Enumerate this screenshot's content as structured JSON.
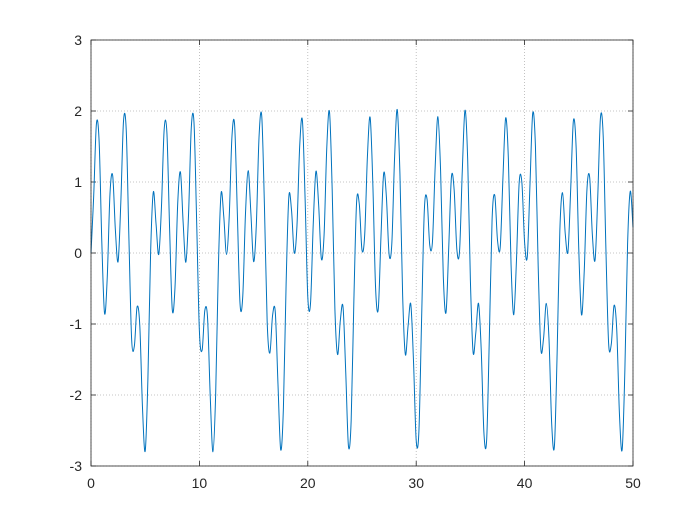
{
  "chart_data": {
    "type": "line",
    "color": "#0072bd",
    "grid": true,
    "xlim": [
      0,
      50
    ],
    "ylim": [
      -3,
      3
    ],
    "xticks": [
      0,
      10,
      20,
      30,
      40,
      50
    ],
    "yticks": [
      -3,
      -2,
      -1,
      0,
      1,
      2,
      3
    ],
    "x": [
      0,
      0.25,
      0.5,
      0.75,
      1,
      1.25,
      1.5,
      1.75,
      2,
      2.25,
      2.5,
      2.75,
      3,
      3.25,
      3.5,
      3.75,
      4,
      4.25,
      4.5,
      4.75,
      5,
      5.25,
      5.5,
      5.75,
      6,
      6.25,
      6.5,
      6.75,
      7,
      7.25,
      7.5,
      7.75,
      8,
      8.25,
      8.5,
      8.75,
      9,
      9.25,
      9.5,
      9.75,
      10,
      10.25,
      10.5,
      10.75,
      11,
      11.25,
      11.5,
      11.75,
      12,
      12.25,
      12.5,
      12.75,
      13,
      13.25,
      13.5,
      13.75,
      14,
      14.25,
      14.5,
      14.75,
      15,
      15.25,
      15.5,
      15.75,
      16,
      16.25,
      16.5,
      16.75,
      17,
      17.25,
      17.5,
      17.75,
      18,
      18.25,
      18.5,
      18.75,
      19,
      19.25,
      19.5,
      19.75,
      20,
      20.25,
      20.5,
      20.75,
      21,
      21.25,
      21.5,
      21.75,
      22,
      22.25,
      22.5,
      22.75,
      23,
      23.25,
      23.5,
      23.75,
      24,
      24.25,
      24.5,
      24.75,
      25,
      25.25,
      25.5,
      25.75,
      26,
      26.25,
      26.5,
      26.75,
      27,
      27.25,
      27.5,
      27.75,
      28,
      28.25,
      28.5,
      28.75,
      29,
      29.25,
      29.5,
      29.75,
      30,
      30.25,
      30.5,
      30.75,
      31,
      31.25,
      31.5,
      31.75,
      32,
      32.25,
      32.5,
      32.75,
      33,
      33.25,
      33.5,
      33.75,
      34,
      34.25,
      34.5,
      34.75,
      35,
      35.25,
      35.5,
      35.75,
      36,
      36.25,
      36.5,
      36.75,
      37,
      37.25,
      37.5,
      37.75,
      38,
      38.25,
      38.5,
      38.75,
      39,
      39.25,
      39.5,
      39.75,
      40,
      40.25,
      40.5,
      40.75,
      41,
      41.25,
      41.5,
      41.75,
      42,
      42.25,
      42.5,
      42.75,
      43,
      43.25,
      43.5,
      43.75,
      44,
      44.25,
      44.5,
      44.75,
      45,
      45.25,
      45.5,
      45.75,
      46,
      46.25,
      46.5,
      46.75,
      47,
      47.25,
      47.5,
      47.75,
      48,
      48.25,
      48.5,
      48.75,
      49,
      49.25,
      49.5,
      49.75,
      50
    ],
    "values": [
      0,
      0.81,
      1.82,
      1.57,
      0.14,
      -0.85,
      -0.34,
      0.83,
      1.09,
      0.32,
      -0.12,
      0.71,
      1.86,
      1.73,
      0.19,
      -1.22,
      -1.31,
      -0.76,
      -1.02,
      -2.18,
      -2.79,
      -1.77,
      0.01,
      0.86,
      0.41,
      -0.02,
      0.65,
      1.74,
      1.7,
      0.35,
      -0.8,
      -0.48,
      0.7,
      1.14,
      0.43,
      -0.13,
      0.55,
      1.76,
      1.84,
      0.42,
      -1.1,
      -1.37,
      -0.81,
      -0.91,
      -2.02,
      -2.8,
      -1.99,
      -0.2,
      0.84,
      0.51,
      -0.02,
      0.51,
      1.63,
      1.8,
      0.56,
      -0.72,
      -0.61,
      0.55,
      1.16,
      0.56,
      -0.12,
      0.39,
      1.63,
      1.93,
      0.66,
      -0.96,
      -1.41,
      -0.88,
      -0.83,
      -1.85,
      -2.77,
      -2.18,
      -0.43,
      0.79,
      0.6,
      0.0,
      0.38,
      1.5,
      1.87,
      0.77,
      -0.62,
      -0.71,
      0.4,
      1.15,
      0.68,
      -0.08,
      0.25,
      1.48,
      1.99,
      0.89,
      -0.79,
      -1.43,
      -0.95,
      -0.76,
      -1.68,
      -2.72,
      -2.36,
      -0.67,
      0.71,
      0.69,
      0.04,
      0.26,
      1.36,
      1.91,
      0.97,
      -0.48,
      -0.79,
      0.23,
      1.12,
      0.79,
      -0.02,
      0.13,
      1.32,
      2.02,
      1.11,
      -0.6,
      -1.43,
      -1.03,
      -0.72,
      -1.52,
      -2.64,
      -2.51,
      -0.92,
      0.6,
      0.76,
      0.11,
      0.16,
      1.21,
      1.92,
      1.16,
      -0.33,
      -0.84,
      0.07,
      1.07,
      0.89,
      0.05,
      0.03,
      1.15,
      2.01,
      1.31,
      -0.39,
      -1.4,
      -1.12,
      -0.71,
      -1.37,
      -2.54,
      -2.63,
      -1.17,
      0.47,
      0.81,
      0.18,
      0.08,
      1.05,
      1.9,
      1.34,
      -0.16,
      -0.87,
      -0.1,
      0.99,
      0.99,
      0.15,
      -0.05,
      0.98,
      1.97,
      1.5,
      -0.17,
      -1.35,
      -1.2,
      -0.71,
      -1.21,
      -2.41,
      -2.72,
      -1.42,
      0.31,
      0.85,
      0.27,
      0.02,
      0.89,
      1.86,
      1.5,
      0.04,
      -0.87,
      -0.26,
      0.89,
      1.07,
      0.26,
      -0.1,
      0.8,
      1.91,
      1.65,
      0.06,
      -1.27,
      -1.28,
      -0.74,
      -1.08,
      -2.27,
      -2.77,
      -1.65,
      0.12,
      0.87,
      0.36
    ]
  }
}
